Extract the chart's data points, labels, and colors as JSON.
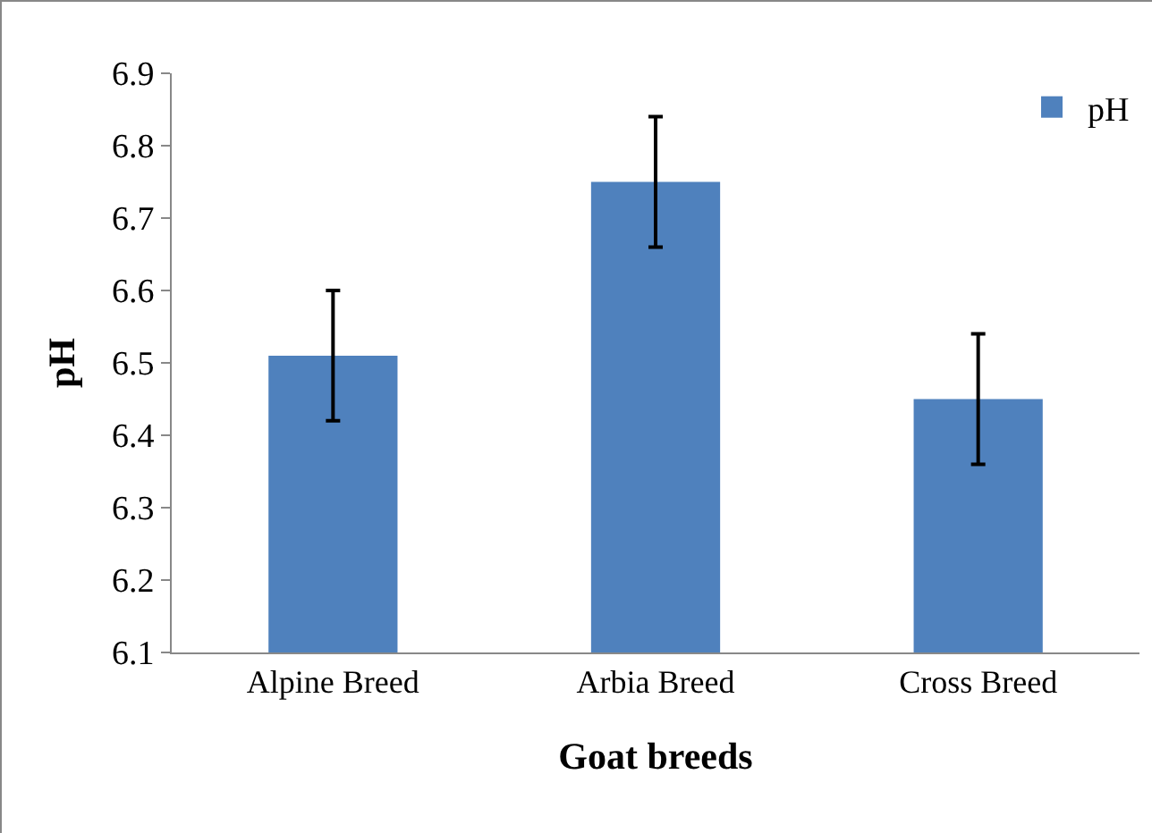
{
  "chart_data": {
    "type": "bar",
    "xlabel": "Goat breeds",
    "ylabel": "pH",
    "categories": [
      "Alpine Breed",
      "Arbia Breed",
      "Cross Breed"
    ],
    "series": [
      {
        "name": "pH",
        "color": "#4f81bd",
        "values": [
          6.51,
          6.75,
          6.45
        ],
        "errors": [
          0.09,
          0.09,
          0.09
        ]
      }
    ],
    "ylim": [
      6.1,
      6.9
    ],
    "yticks": [
      6.1,
      6.2,
      6.3,
      6.4,
      6.5,
      6.6,
      6.7,
      6.8,
      6.9
    ],
    "grid": false,
    "legend": "top right"
  }
}
